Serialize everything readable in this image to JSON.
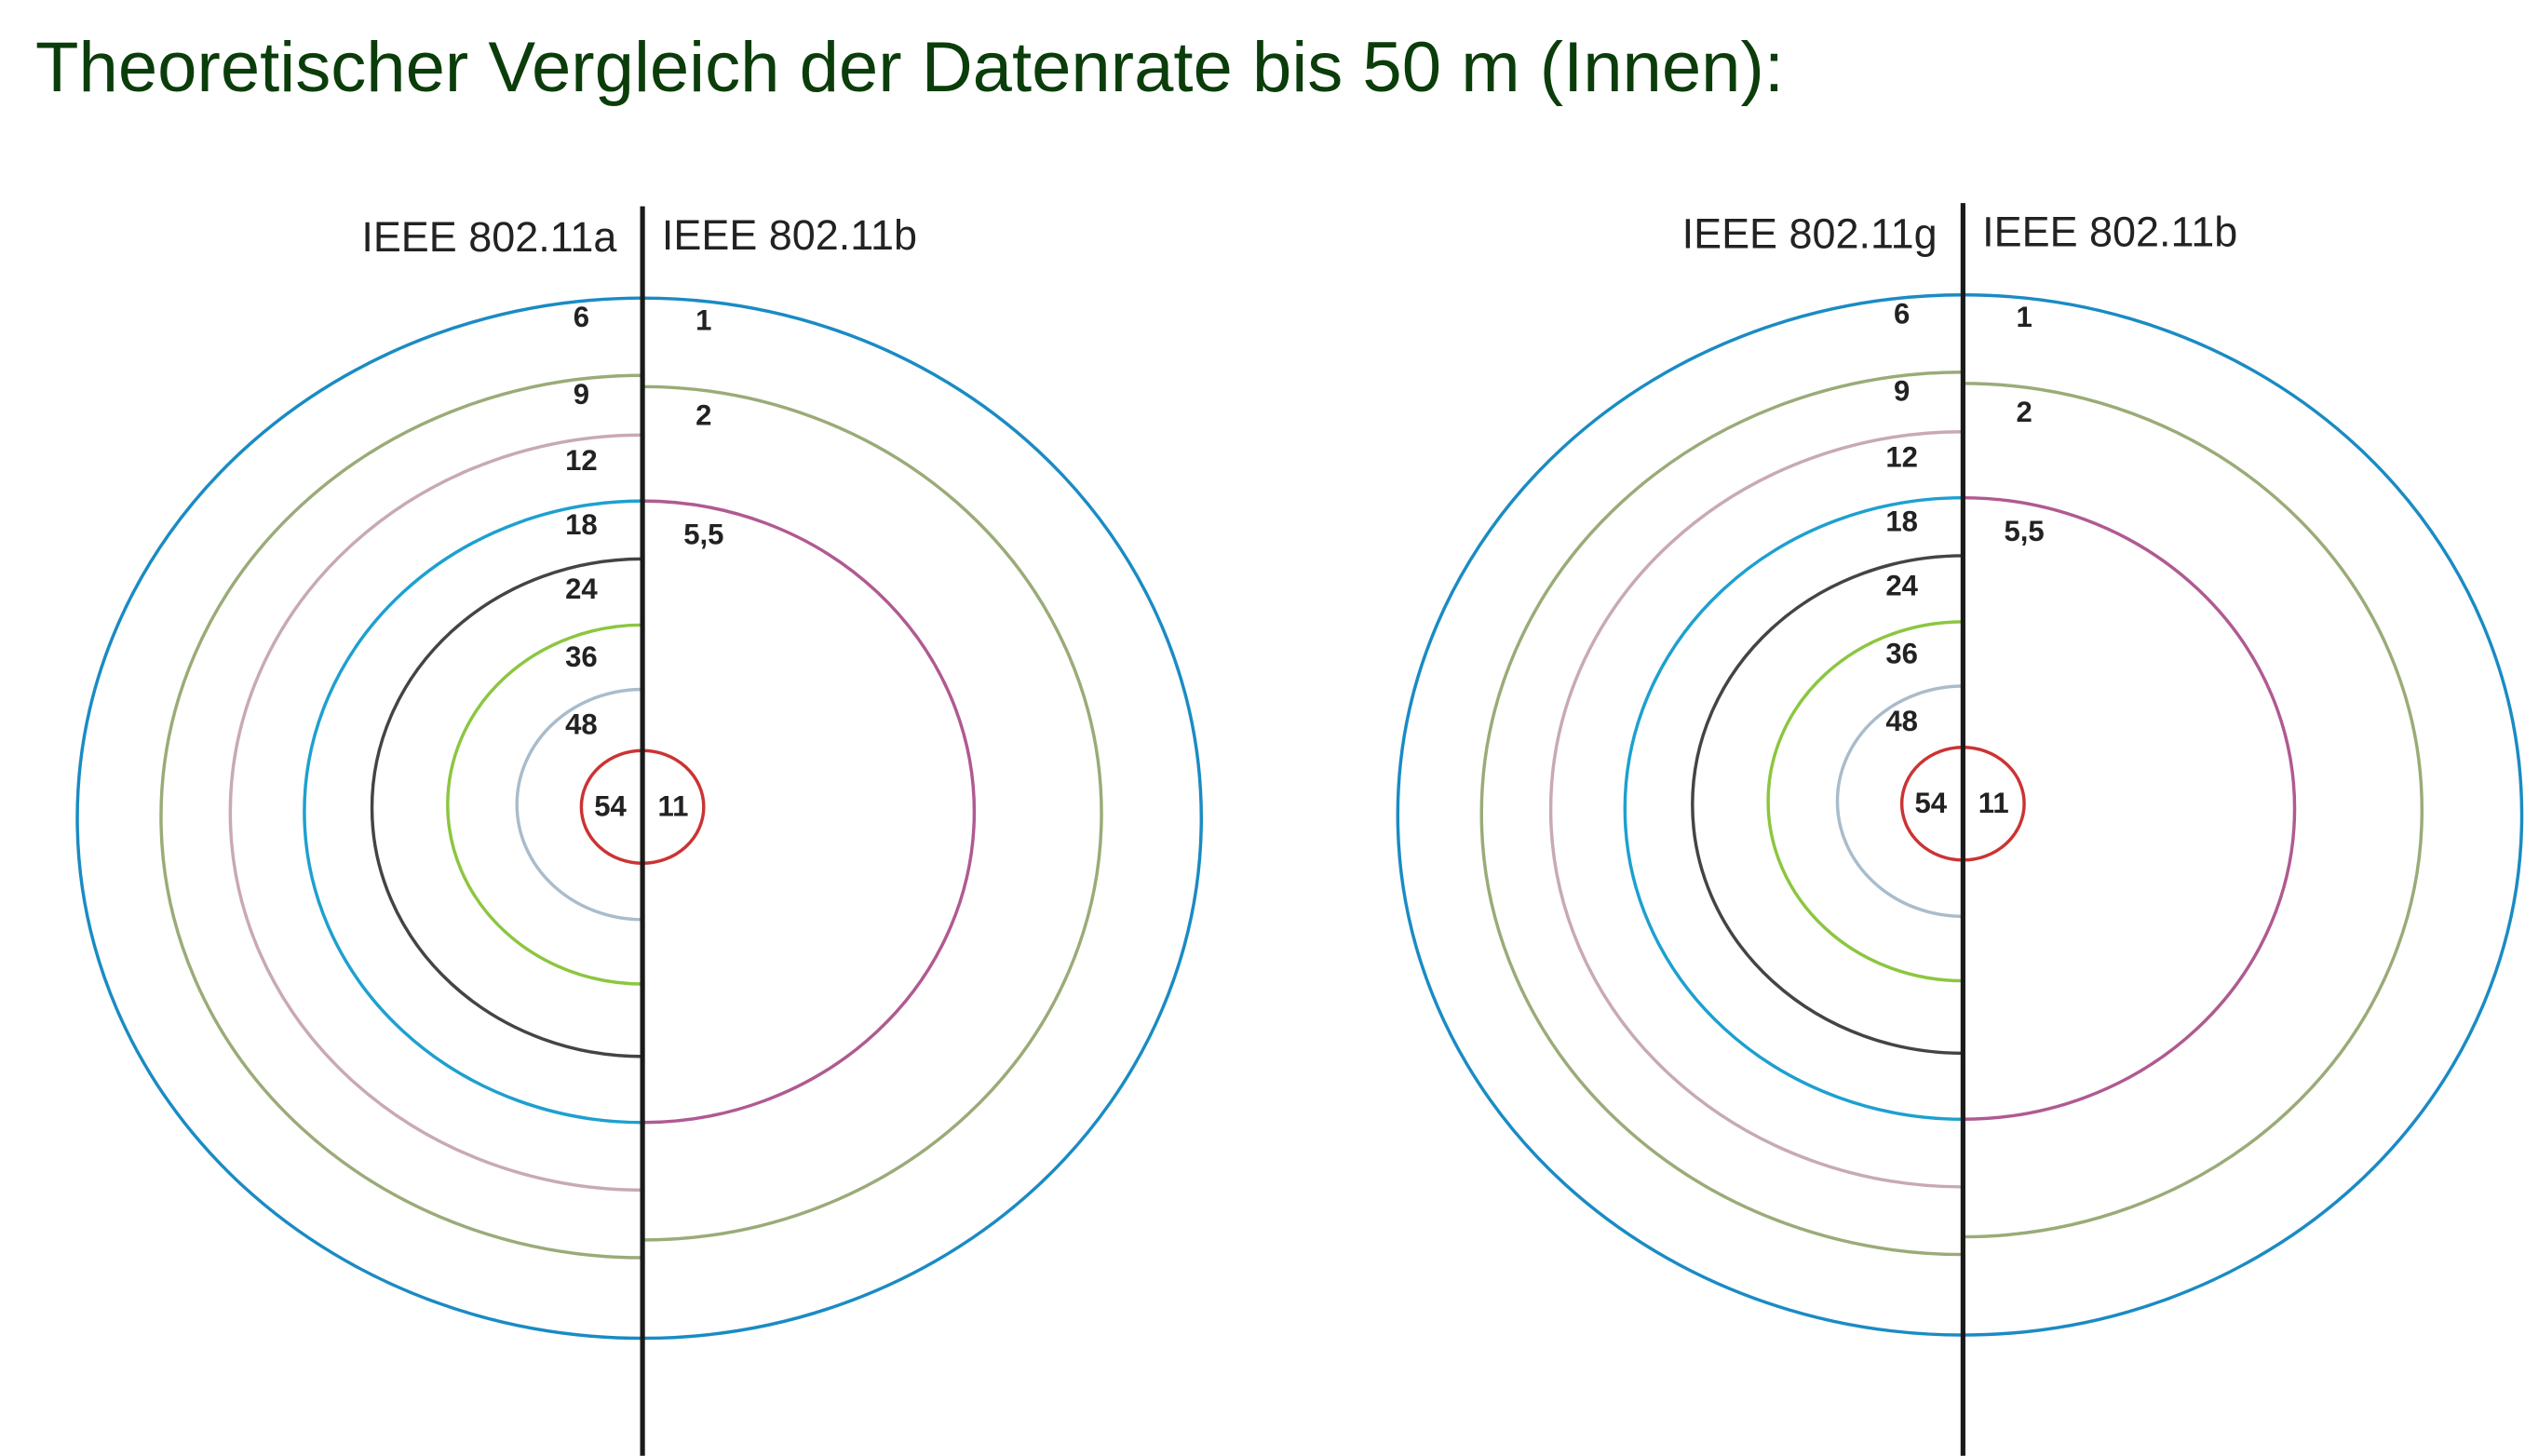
{
  "title": "Theoretischer Vergleich der Datenrate bis 50 m (Innen):",
  "diagrams": [
    {
      "left_label": "IEEE 802.11a",
      "right_label": "IEEE 802.11b",
      "left_rings": [
        "6",
        "9",
        "12",
        "18",
        "24",
        "36",
        "48",
        "54"
      ],
      "right_rings": [
        "1",
        "2",
        "5,5",
        "11"
      ]
    },
    {
      "left_label": "IEEE 802.11g",
      "right_label": "IEEE 802.11b",
      "left_rings": [
        "6",
        "9",
        "12",
        "18",
        "24",
        "36",
        "48",
        "54"
      ],
      "right_rings": [
        "1",
        "2",
        "5,5",
        "11"
      ]
    }
  ]
}
